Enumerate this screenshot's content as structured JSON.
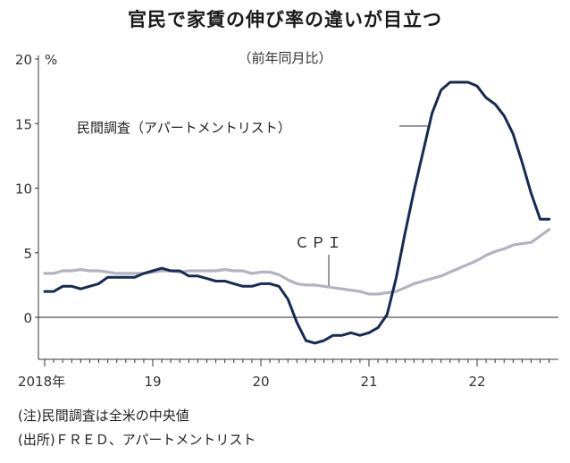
{
  "title": "官民で家賃の伸び率の違いが目立つ",
  "subtitle": "（前年同月比）",
  "notes": [
    "(注)民間調査は全米の中央値",
    "(出所)ＦＲＥＤ、アパートメントリスト"
  ],
  "colors": {
    "private": "#172a55",
    "cpi": "#b3b3c1",
    "axis": "#333333",
    "zero": "#222222"
  },
  "chart_data": {
    "type": "line",
    "ylabel": "%",
    "ylim": [
      -4,
      20
    ],
    "xlim": [
      2018,
      2022.85
    ],
    "y_ticks": [
      0,
      5,
      10,
      15,
      20
    ],
    "y_tick_labels": [
      "0",
      "5",
      "10",
      "15",
      "20"
    ],
    "x_ticks": [
      2018,
      2019,
      2020,
      2021,
      2022
    ],
    "x_tick_labels": [
      "2018年",
      "19",
      "20",
      "21",
      "22"
    ],
    "grid": false,
    "legend": "inline labels",
    "series": [
      {
        "name": "民間調査（アパートメントリスト）",
        "x": [
          2018.0,
          2018.0833,
          2018.1667,
          2018.25,
          2018.3333,
          2018.4167,
          2018.5,
          2018.5833,
          2018.6667,
          2018.75,
          2018.8333,
          2018.9167,
          2019.0,
          2019.0833,
          2019.1667,
          2019.25,
          2019.3333,
          2019.4167,
          2019.5,
          2019.5833,
          2019.6667,
          2019.75,
          2019.8333,
          2019.9167,
          2020.0,
          2020.0833,
          2020.1667,
          2020.25,
          2020.3333,
          2020.4167,
          2020.5,
          2020.5833,
          2020.6667,
          2020.75,
          2020.8333,
          2020.9167,
          2021.0,
          2021.0833,
          2021.1667,
          2021.25,
          2021.3333,
          2021.4167,
          2021.5,
          2021.5833,
          2021.6667,
          2021.75,
          2021.8333,
          2021.9167,
          2022.0,
          2022.0833,
          2022.1667,
          2022.25,
          2022.3333,
          2022.4167,
          2022.5,
          2022.5833,
          2022.6667
        ],
        "y": [
          2.0,
          2.0,
          2.4,
          2.4,
          2.2,
          2.4,
          2.6,
          3.1,
          3.1,
          3.1,
          3.1,
          3.4,
          3.6,
          3.8,
          3.6,
          3.6,
          3.2,
          3.2,
          3.0,
          2.8,
          2.8,
          2.6,
          2.4,
          2.4,
          2.6,
          2.6,
          2.4,
          1.4,
          -0.4,
          -1.8,
          -2.0,
          -1.8,
          -1.4,
          -1.4,
          -1.2,
          -1.4,
          -1.2,
          -0.8,
          0.2,
          3.0,
          6.5,
          9.8,
          12.8,
          15.8,
          17.6,
          18.2,
          18.2,
          18.2,
          17.9,
          17.0,
          16.5,
          15.6,
          14.2,
          12.0,
          9.6,
          7.6,
          7.6
        ],
        "label": "民間調査（アパートメントリスト）"
      },
      {
        "name": "CPI",
        "x": [
          2018.0,
          2018.0833,
          2018.1667,
          2018.25,
          2018.3333,
          2018.4167,
          2018.5,
          2018.5833,
          2018.6667,
          2018.75,
          2018.8333,
          2018.9167,
          2019.0,
          2019.0833,
          2019.1667,
          2019.25,
          2019.3333,
          2019.4167,
          2019.5,
          2019.5833,
          2019.6667,
          2019.75,
          2019.8333,
          2019.9167,
          2020.0,
          2020.0833,
          2020.1667,
          2020.25,
          2020.3333,
          2020.4167,
          2020.5,
          2020.5833,
          2020.6667,
          2020.75,
          2020.8333,
          2020.9167,
          2021.0,
          2021.0833,
          2021.1667,
          2021.25,
          2021.3333,
          2021.4167,
          2021.5,
          2021.5833,
          2021.6667,
          2021.75,
          2021.8333,
          2021.9167,
          2022.0,
          2022.0833,
          2022.1667,
          2022.25,
          2022.3333,
          2022.4167,
          2022.5,
          2022.5833,
          2022.6667
        ],
        "y": [
          3.4,
          3.4,
          3.6,
          3.6,
          3.7,
          3.6,
          3.6,
          3.5,
          3.4,
          3.4,
          3.4,
          3.4,
          3.5,
          3.6,
          3.6,
          3.5,
          3.6,
          3.6,
          3.6,
          3.6,
          3.7,
          3.6,
          3.6,
          3.4,
          3.5,
          3.5,
          3.3,
          2.9,
          2.6,
          2.5,
          2.5,
          2.4,
          2.3,
          2.2,
          2.1,
          2.0,
          1.8,
          1.8,
          1.9,
          2.0,
          2.3,
          2.6,
          2.8,
          3.0,
          3.2,
          3.5,
          3.8,
          4.1,
          4.4,
          4.8,
          5.1,
          5.3,
          5.6,
          5.7,
          5.8,
          6.3,
          6.8
        ],
        "label": "ＣＰＩ"
      }
    ]
  }
}
